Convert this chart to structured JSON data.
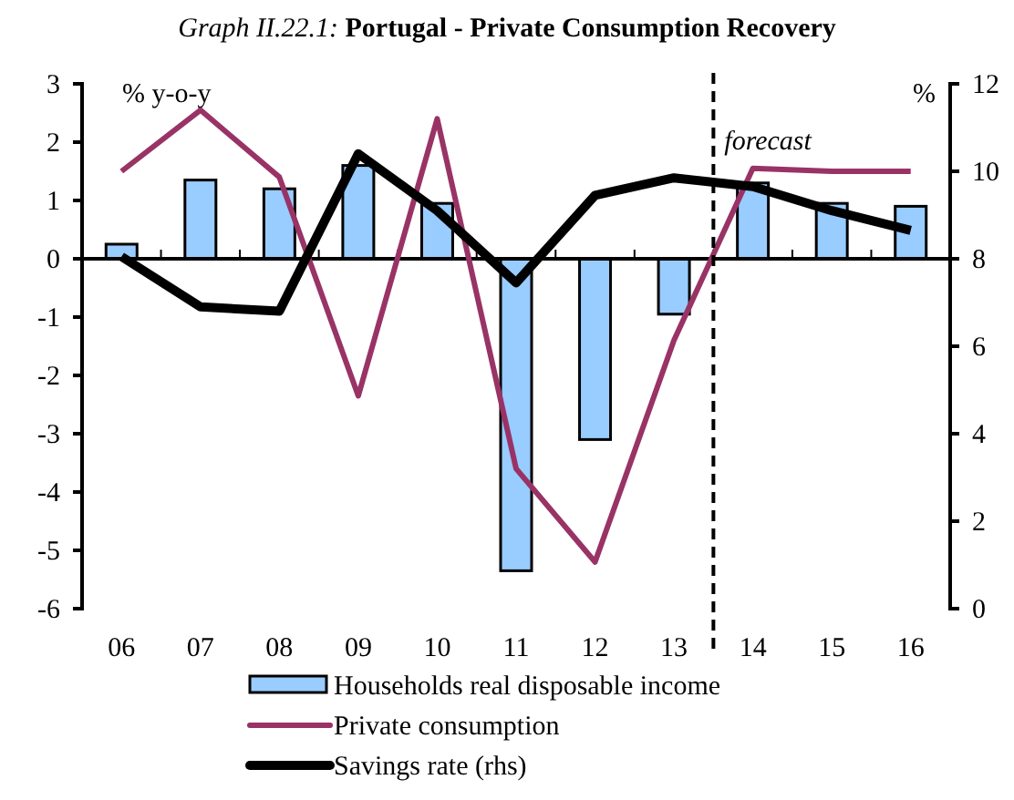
{
  "chart_data": {
    "type": "bar",
    "title": "Graph II.22.1: Portugal - Private Consumption Recovery",
    "ylabel": "% y-o-y",
    "y2label": "%",
    "categories": [
      "06",
      "07",
      "08",
      "09",
      "10",
      "11",
      "12",
      "13",
      "14",
      "15",
      "16"
    ],
    "series": [
      {
        "name": "Households real disposable income",
        "color": "#99ccff",
        "values": [
          0.25,
          1.35,
          1.2,
          1.6,
          0.95,
          -5.35,
          -3.1,
          -0.95,
          1.3,
          0.95,
          0.9
        ]
      },
      {
        "name": "Private consumption",
        "type": "line",
        "color": "#993366",
        "values": [
          1.5,
          2.55,
          1.4,
          -2.35,
          2.4,
          -3.6,
          -5.2,
          -1.4,
          1.55,
          1.5,
          1.5
        ]
      },
      {
        "name": "Savings rate (rhs)",
        "type": "line",
        "axis": "y2",
        "color": "#000000",
        "values": [
          8.05,
          6.9,
          6.8,
          10.4,
          9.1,
          7.45,
          9.45,
          9.85,
          9.65,
          9.1,
          8.65
        ]
      }
    ],
    "ylim": [
      -6,
      3
    ],
    "yticks": [
      -6,
      -5,
      -4,
      -3,
      -2,
      -1,
      0,
      1,
      2,
      3
    ],
    "y2lim": [
      0,
      12
    ],
    "y2ticks": [
      0,
      2,
      4,
      6,
      8,
      10,
      12
    ],
    "ref_lines": [
      {
        "axis": "x",
        "value": "14",
        "label": "forecast",
        "line_style": "dashed",
        "color": "#000000"
      }
    ],
    "legend": "bottom",
    "grid": false
  }
}
